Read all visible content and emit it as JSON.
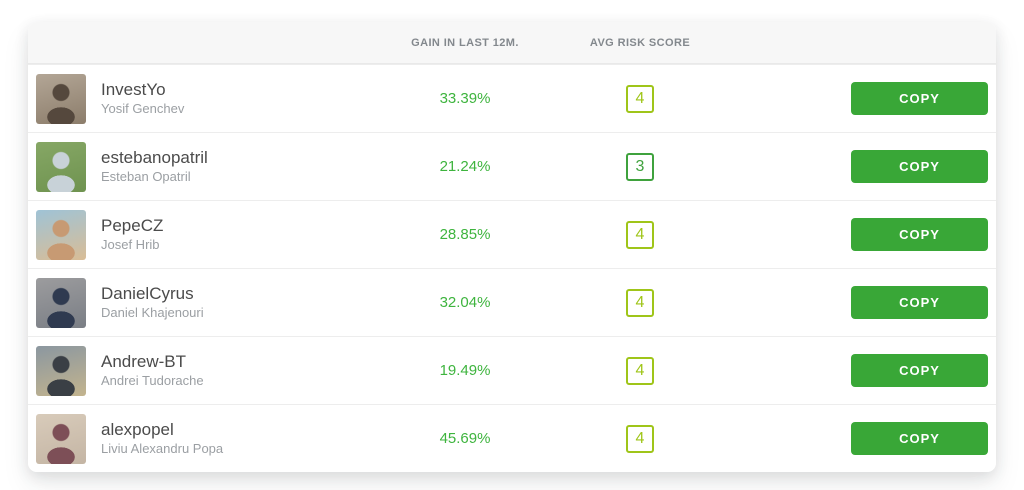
{
  "header": {
    "gain_column_label": "GAIN IN LAST 12M.",
    "risk_column_label": "AVG RISK SCORE"
  },
  "action": {
    "copy_label": "COPY"
  },
  "colors": {
    "gain_green": "#3eb43e",
    "copy_button_green": "#39a737",
    "risk_score_3_green": "#3fa23d",
    "risk_score_4_yellow_green": "#9fc519",
    "header_bg": "#f7f7f7"
  },
  "rows": [
    {
      "username": "InvestYo",
      "full_name": "Yosif Genchev",
      "gain": "33.39%",
      "risk_score": "4",
      "risk_color": "#9fc519",
      "avatar_colors": [
        "#b3a696",
        "#55483d",
        "#8c7d6b"
      ]
    },
    {
      "username": "estebanopatril",
      "full_name": "Esteban Opatril",
      "gain": "21.24%",
      "risk_score": "3",
      "risk_color": "#3fa23d",
      "avatar_colors": [
        "#86a765",
        "#c8d2d8",
        "#6f9350"
      ]
    },
    {
      "username": "PepeCZ",
      "full_name": "Josef Hrib",
      "gain": "28.85%",
      "risk_score": "4",
      "risk_color": "#9fc519",
      "avatar_colors": [
        "#9fc3d6",
        "#c79a73",
        "#d9bd96"
      ]
    },
    {
      "username": "DanielCyrus",
      "full_name": "Daniel Khajenouri",
      "gain": "32.04%",
      "risk_score": "4",
      "risk_color": "#9fc519",
      "avatar_colors": [
        "#9c9c9e",
        "#2f3a50",
        "#7a7e85"
      ]
    },
    {
      "username": "Andrew-BT",
      "full_name": "Andrei Tudorache",
      "gain": "19.49%",
      "risk_score": "4",
      "risk_color": "#9fc519",
      "avatar_colors": [
        "#8b97a0",
        "#3a3f45",
        "#c3b48e"
      ]
    },
    {
      "username": "alexpopel",
      "full_name": "Liviu Alexandru Popa",
      "gain": "45.69%",
      "risk_score": "4",
      "risk_color": "#9fc519",
      "avatar_colors": [
        "#d8cbba",
        "#7d4f57",
        "#c4b5a4"
      ]
    }
  ]
}
